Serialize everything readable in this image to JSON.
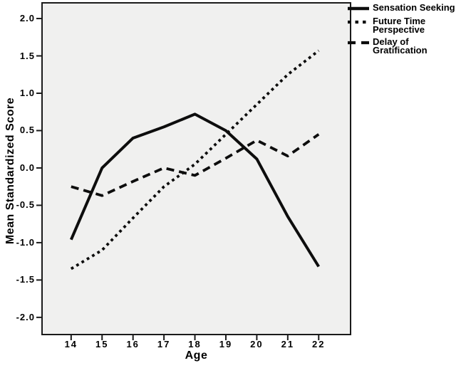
{
  "figure": {
    "background": "#ffffff",
    "plot_background": "#f0f0ef",
    "frame_color": "#1a1a1a",
    "line_color": "#0d0d0d"
  },
  "axes": {
    "x_label": "Age",
    "y_label": "Mean Standardized Score"
  },
  "legend": {
    "entries": [
      {
        "id": "sensation-seeking",
        "style": "solid",
        "label_lines": [
          "Sensation Seeking"
        ]
      },
      {
        "id": "future-time-perspective",
        "style": "dotted",
        "label_lines": [
          "Future Time",
          "Perspective"
        ]
      },
      {
        "id": "delay-of-gratification",
        "style": "dashed",
        "label_lines": [
          "Delay of",
          "Gratification"
        ]
      }
    ]
  },
  "chart_data": {
    "type": "line",
    "title": "",
    "xlabel": "Age",
    "ylabel": "Mean Standardized Score",
    "x": [
      14,
      15,
      16,
      17,
      18,
      19,
      20,
      21,
      22
    ],
    "series": [
      {
        "name": "Sensation Seeking",
        "style": "solid",
        "values": [
          -0.96,
          0.0,
          0.4,
          0.55,
          0.72,
          0.5,
          0.12,
          -0.65,
          -1.32
        ]
      },
      {
        "name": "Future Time Perspective",
        "style": "dotted",
        "values": [
          -1.35,
          -1.1,
          -0.67,
          -0.25,
          0.05,
          0.45,
          0.85,
          1.25,
          1.57
        ]
      },
      {
        "name": "Delay of Gratification",
        "style": "dashed",
        "values": [
          -0.25,
          -0.37,
          -0.18,
          0.0,
          -0.1,
          0.13,
          0.37,
          0.16,
          0.45
        ]
      }
    ],
    "x_ticks": [
      14,
      15,
      16,
      17,
      18,
      19,
      20,
      21,
      22
    ],
    "y_ticks": [
      2.0,
      1.5,
      1.0,
      0.5,
      0.0,
      -0.5,
      -1.0,
      -1.5,
      -2.0
    ],
    "xlim": [
      13.06,
      23.03
    ],
    "ylim": [
      -2.23,
      2.21
    ],
    "grid": false,
    "legend_position": "outside-top-right",
    "line_color": "black-monochrome"
  }
}
